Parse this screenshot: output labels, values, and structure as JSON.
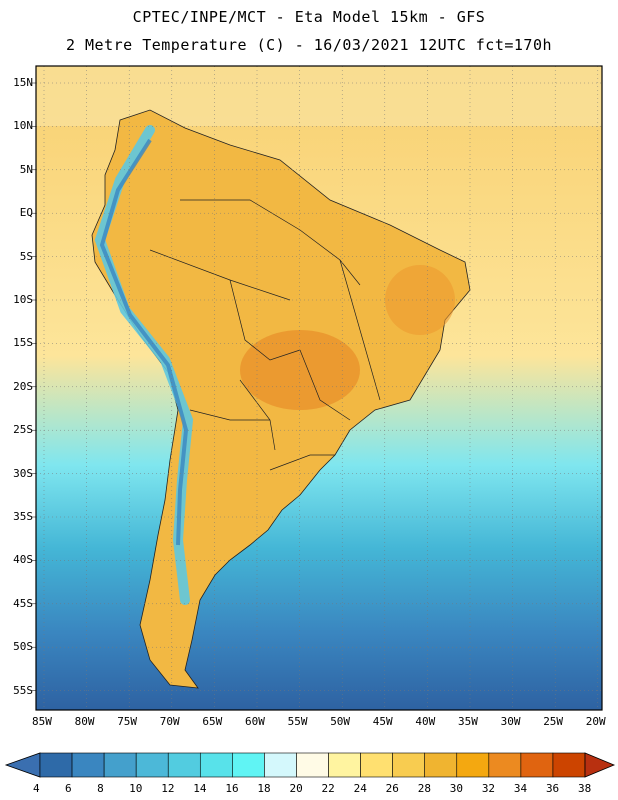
{
  "header": {
    "line1": "CPTEC/INPE/MCT -  Eta Model 15km - GFS",
    "line2": "2 Metre Temperature (C) - 16/03/2021 12UTC fct=170h"
  },
  "map": {
    "lat_labels": [
      "15N",
      "10N",
      "5N",
      "EQ",
      "5S",
      "10S",
      "15S",
      "20S",
      "25S",
      "30S",
      "35S",
      "40S",
      "45S",
      "50S",
      "55S"
    ],
    "lon_labels": [
      "85W",
      "80W",
      "75W",
      "70W",
      "65W",
      "60W",
      "55W",
      "50W",
      "45W",
      "40W",
      "35W",
      "30W",
      "25W",
      "20W"
    ]
  },
  "colorbar": {
    "labels": [
      "4",
      "6",
      "8",
      "10",
      "12",
      "14",
      "16",
      "18",
      "20",
      "22",
      "24",
      "26",
      "28",
      "30",
      "32",
      "34",
      "36",
      "38"
    ],
    "colors": {
      "below": "#3a6fb0",
      "bins": [
        "#2e6aa8",
        "#3a86c0",
        "#44a0cc",
        "#4cb8d8",
        "#52cce0",
        "#58e2ea",
        "#60f4f4",
        "#d4f8fc",
        "#fffbe6",
        "#fff4a0",
        "#ffe070",
        "#f8cc50",
        "#f0b430",
        "#f4a810",
        "#ec8a20",
        "#e06410",
        "#cc4400"
      ],
      "above": "#b83010"
    }
  }
}
